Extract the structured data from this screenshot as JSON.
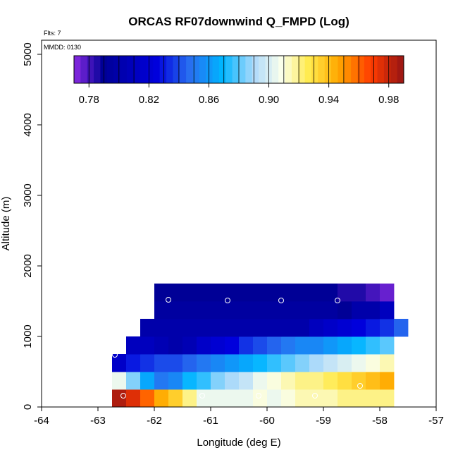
{
  "chart_data": {
    "type": "heatmap",
    "title": "ORCAS RF07downwind Q_FMPD (Log)",
    "top_left_note": "Flts: 7",
    "box_note": "MMDD: 0130",
    "xlabel": "Longitude (deg E)",
    "ylabel": "Altitude (m)",
    "xlim": [
      -64,
      -57
    ],
    "ylim": [
      0,
      5200
    ],
    "x_ticks": [
      -64,
      -63,
      -62,
      -61,
      -60,
      -59,
      -58,
      -57
    ],
    "x_tick_labels": [
      "-64",
      "-63",
      "-62",
      "-61",
      "-60",
      "-59",
      "-58",
      "-57"
    ],
    "y_ticks": [
      0,
      1000,
      2000,
      3000,
      4000,
      5000
    ],
    "y_tick_labels": [
      "0",
      "1000",
      "2000",
      "3000",
      "4000",
      "5000"
    ],
    "colorbar": {
      "range": [
        0.77,
        0.99
      ],
      "ticks": [
        0.78,
        0.82,
        0.86,
        0.9,
        0.94,
        0.98
      ],
      "tick_labels": [
        "0.78",
        "0.82",
        "0.86",
        "0.90",
        "0.94",
        "0.98"
      ]
    },
    "cell_width_deg": 0.25,
    "cell_height_m": 250,
    "rows": [
      {
        "y0": 0,
        "x0": -62.75,
        "values": [
          0.985,
          0.975,
          0.96,
          0.945,
          0.935,
          0.92,
          0.905,
          0.905,
          0.905,
          0.905,
          0.91,
          0.905,
          0.91,
          0.915,
          0.915,
          0.915,
          0.92,
          0.92,
          0.92,
          0.92
        ]
      },
      {
        "y0": 250,
        "x0": -62.75,
        "values": [
          0.905,
          0.885,
          0.865,
          0.85,
          0.855,
          0.87,
          0.875,
          0.885,
          0.89,
          0.895,
          0.905,
          0.91,
          0.915,
          0.92,
          0.92,
          0.925,
          0.93,
          0.935,
          0.94,
          0.945
        ]
      },
      {
        "y0": 500,
        "x0": -62.75,
        "values": [
          0.815,
          0.83,
          0.835,
          0.84,
          0.84,
          0.845,
          0.85,
          0.855,
          0.86,
          0.865,
          0.87,
          0.875,
          0.88,
          0.885,
          0.89,
          0.895,
          0.9,
          0.905,
          0.91,
          0.915
        ]
      },
      {
        "y0": 750,
        "x0": -62.5,
        "values": [
          0.81,
          0.81,
          0.805,
          0.8,
          0.805,
          0.815,
          0.82,
          0.825,
          0.835,
          0.84,
          0.845,
          0.85,
          0.855,
          0.855,
          0.86,
          0.865,
          0.87,
          0.875,
          0.88
        ]
      },
      {
        "y0": 1000,
        "x0": -62.25,
        "values": [
          0.8,
          0.8,
          0.8,
          0.8,
          0.8,
          0.8,
          0.8,
          0.8,
          0.8,
          0.8,
          0.8,
          0.8,
          0.81,
          0.815,
          0.82,
          0.825,
          0.83,
          0.835,
          0.845
        ]
      },
      {
        "y0": 1250,
        "x0": -62.0,
        "values": [
          0.795,
          0.795,
          0.795,
          0.795,
          0.795,
          0.795,
          0.795,
          0.795,
          0.795,
          0.795,
          0.795,
          0.795,
          0.795,
          0.79,
          0.8,
          0.8,
          0.81
        ]
      },
      {
        "y0": 1500,
        "x0": -62.0,
        "values": [
          0.79,
          0.79,
          0.79,
          0.79,
          0.79,
          0.79,
          0.79,
          0.79,
          0.79,
          0.79,
          0.79,
          0.79,
          0.79,
          0.785,
          0.785,
          0.78,
          0.775
        ]
      }
    ],
    "points": [
      {
        "x": -62.55,
        "y": 160
      },
      {
        "x": -61.15,
        "y": 160
      },
      {
        "x": -60.15,
        "y": 160
      },
      {
        "x": -59.15,
        "y": 160
      },
      {
        "x": -58.35,
        "y": 300
      },
      {
        "x": -62.7,
        "y": 740
      },
      {
        "x": -61.75,
        "y": 1520
      },
      {
        "x": -60.7,
        "y": 1510
      },
      {
        "x": -59.75,
        "y": 1510
      },
      {
        "x": -58.75,
        "y": 1510
      }
    ]
  }
}
